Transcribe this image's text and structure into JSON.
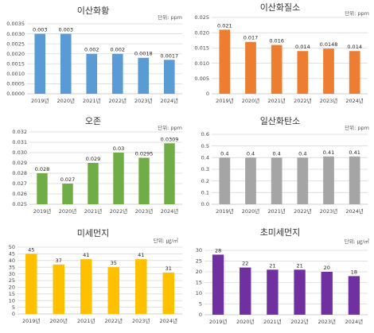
{
  "chart_data": [
    {
      "type": "bar",
      "title": "이산화황",
      "unit": "단위: ppm",
      "categories": [
        "2019년",
        "2020년",
        "2021년",
        "2022년",
        "2023년",
        "2024년"
      ],
      "values": [
        0.003,
        0.003,
        0.002,
        0.002,
        0.0018,
        0.0017
      ],
      "value_labels": [
        "0.003",
        "0.003",
        "0.002",
        "0.002",
        "0.0018",
        "0.0017"
      ],
      "yticks": [
        "0.0000",
        "0.0005",
        "0.0010",
        "0.0015",
        "0.0020",
        "0.0025",
        "0.0030",
        "0.0035"
      ],
      "ylim": [
        0,
        0.0035
      ],
      "color": "#5B9BD5",
      "grid": true,
      "legend": "none"
    },
    {
      "type": "bar",
      "title": "이산화질소",
      "unit": "단위: ppm",
      "categories": [
        "2019년",
        "2020년",
        "2021년",
        "2022년",
        "2023년",
        "2024년"
      ],
      "values": [
        0.021,
        0.017,
        0.016,
        0.014,
        0.0148,
        0.014
      ],
      "value_labels": [
        "0.021",
        "0.017",
        "0.016",
        "0.014",
        "0.0148",
        "0.014"
      ],
      "yticks": [
        "0",
        "0.005",
        "0.010",
        "0.015",
        "0.020",
        "0.025"
      ],
      "ylim": [
        0,
        0.025
      ],
      "color": "#ED7D31",
      "grid": true,
      "legend": "none"
    },
    {
      "type": "bar",
      "title": "오존",
      "unit": "단위: ppm",
      "categories": [
        "2019년",
        "2020년",
        "2021년",
        "2022년",
        "2023년",
        "2024년"
      ],
      "values": [
        0.028,
        0.027,
        0.029,
        0.03,
        0.0295,
        0.0309
      ],
      "value_labels": [
        "0.028",
        "0.027",
        "0.029",
        "0.03",
        "0.0295",
        "0.0309"
      ],
      "yticks": [
        "0.025",
        "0.026",
        "0.027",
        "0.028",
        "0.029",
        "0.030",
        "0.031",
        "0.032"
      ],
      "ylim": [
        0.025,
        0.032
      ],
      "color": "#70AD47",
      "grid": true,
      "legend": "none"
    },
    {
      "type": "bar",
      "title": "일산화탄소",
      "unit": "단위: ppm",
      "categories": [
        "2019년",
        "2020년",
        "2021년",
        "2022년",
        "2023년",
        "2024년"
      ],
      "values": [
        0.4,
        0.4,
        0.4,
        0.4,
        0.41,
        0.41
      ],
      "value_labels": [
        "0.4",
        "0.4",
        "0.4",
        "0.4",
        "0.41",
        "0.41"
      ],
      "yticks": [
        "0.0",
        "0.1",
        "0.2",
        "0.3",
        "0.4",
        "0.5",
        "0.6"
      ],
      "ylim": [
        0,
        0.6
      ],
      "color": "#A5A5A5",
      "grid": true,
      "legend": "none"
    },
    {
      "type": "bar",
      "title": "미세먼지",
      "unit": "단위: ㎍/㎥",
      "categories": [
        "2019년",
        "2020년",
        "2021년",
        "2022년",
        "2023년",
        "2024년"
      ],
      "values": [
        45,
        37,
        41,
        35,
        41,
        31
      ],
      "value_labels": [
        "45",
        "37",
        "41",
        "35",
        "41",
        "31"
      ],
      "yticks": [
        "0",
        "5",
        "10",
        "15",
        "20",
        "25",
        "30",
        "35",
        "40",
        "45",
        "50"
      ],
      "ylim": [
        0,
        50
      ],
      "color": "#FFC000",
      "grid": true,
      "legend": "none"
    },
    {
      "type": "bar",
      "title": "초미세먼지",
      "unit": "단위: ㎍/㎥",
      "categories": [
        "2019년",
        "2020년",
        "2021년",
        "2022년",
        "2023년",
        "2024년"
      ],
      "values": [
        28,
        22,
        21,
        21,
        20,
        18
      ],
      "value_labels": [
        "28",
        "22",
        "21",
        "21",
        "20",
        "18"
      ],
      "yticks": [
        "0",
        "5",
        "10",
        "15",
        "20",
        "25",
        "30"
      ],
      "ylim": [
        0,
        30
      ],
      "color": "#7030A0",
      "grid": true,
      "legend": "none"
    }
  ]
}
